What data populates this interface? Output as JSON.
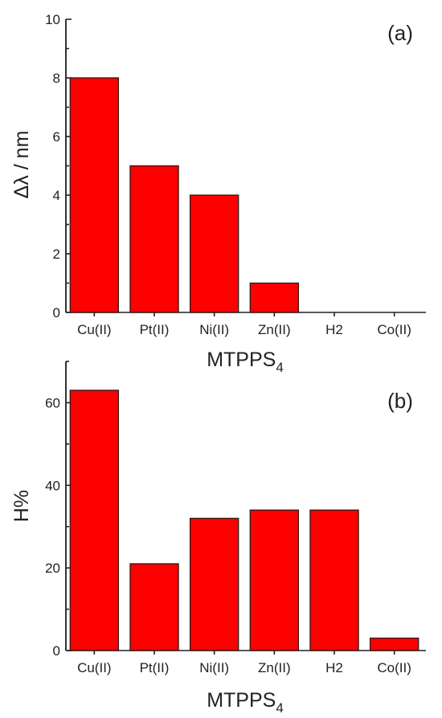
{
  "colors": {
    "bar_fill": "#ff0000",
    "bar_edge": "#3a1a1a",
    "axis": "#222222"
  },
  "chart_data": [
    {
      "type": "bar",
      "panel_label": "(a)",
      "categories": [
        "Cu(II)",
        "Pt(II)",
        "Ni(II)",
        "Zn(II)",
        "H2",
        "Co(II)"
      ],
      "values": [
        8,
        5,
        4,
        1,
        0,
        0
      ],
      "xlabel": "MTPPS",
      "xlabel_sub": "4",
      "ylabel": "Δλ / nm",
      "ylim": [
        0,
        10
      ],
      "yticks": [
        0,
        2,
        4,
        6,
        8,
        10
      ],
      "grid": false
    },
    {
      "type": "bar",
      "panel_label": "(b)",
      "categories": [
        "Cu(II)",
        "Pt(II)",
        "Ni(II)",
        "Zn(II)",
        "H2",
        "Co(II)"
      ],
      "values": [
        63,
        21,
        32,
        34,
        34,
        3
      ],
      "xlabel": "MTPPS",
      "xlabel_sub": "4",
      "ylabel": "H%",
      "ylim": [
        0,
        70
      ],
      "yticks": [
        0,
        20,
        40,
        60
      ],
      "grid": false
    }
  ]
}
